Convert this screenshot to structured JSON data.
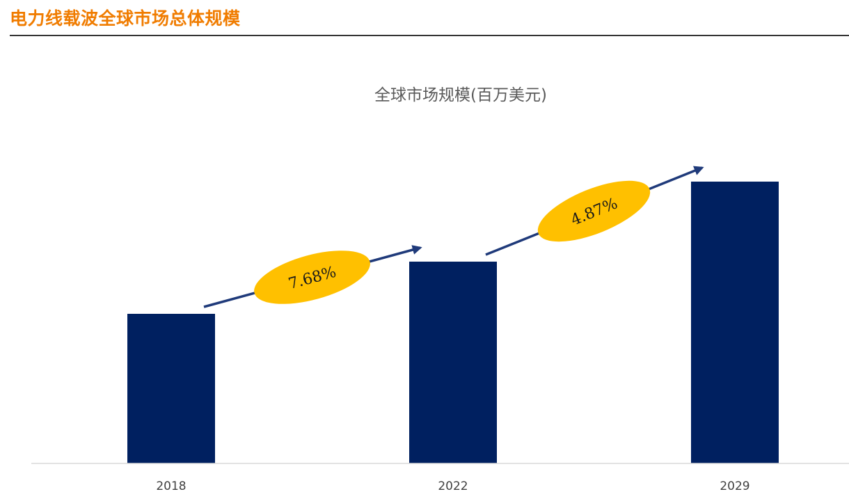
{
  "header": {
    "title": "电力线载波全球市场总体规模"
  },
  "chart_data": {
    "type": "bar",
    "title": "全球市场规模(百万美元)",
    "xlabel": "",
    "ylabel": "",
    "categories": [
      "2018",
      "2022",
      "2029"
    ],
    "values": [
      215,
      290,
      405
    ],
    "ylim": [
      0,
      500
    ],
    "grid": false,
    "legend": "none",
    "colors": {
      "bar": "#002060",
      "arrow": "#1f3a7a",
      "badge": "#ffc000",
      "axis": "#d9d9d9",
      "header_accent": "#f07c00"
    },
    "annotations": [
      {
        "from": "2018",
        "to": "2022",
        "label": "7.68%"
      },
      {
        "from": "2022",
        "to": "2029",
        "label": "4.87%"
      }
    ]
  }
}
